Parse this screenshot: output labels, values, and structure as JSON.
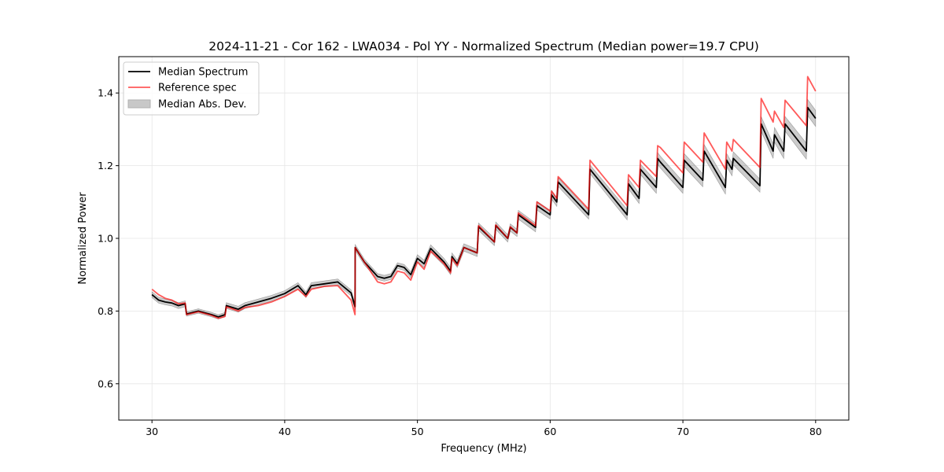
{
  "chart_data": {
    "type": "line",
    "title": "2024-11-21 - Cor 162 - LWA034 - Pol YY - Normalized Spectrum (Median power=19.7 CPU)",
    "xlabel": "Frequency (MHz)",
    "ylabel": "Normalized Power",
    "xlim": [
      27.5,
      82.5
    ],
    "ylim": [
      0.5,
      1.5
    ],
    "xticks": [
      30,
      40,
      50,
      60,
      70,
      80
    ],
    "xtick_labels": [
      "30",
      "40",
      "50",
      "60",
      "70",
      "80"
    ],
    "yticks": [
      0.6,
      0.8,
      1.0,
      1.2,
      1.4
    ],
    "ytick_labels": [
      "0.6",
      "0.8",
      "1.0",
      "1.2",
      "1.4"
    ],
    "grid": true,
    "legend_placement": "top-left",
    "legend": [
      "Median Spectrum",
      "Reference spec",
      "Median Abs. Dev."
    ],
    "colors": {
      "median": "#000000",
      "reference": "#ff5a5a",
      "mad": "#c8c8c8"
    },
    "columns": [
      "frequency_mhz",
      "median",
      "reference",
      "mad"
    ],
    "points": [
      [
        30.0,
        0.845,
        0.86,
        0.008
      ],
      [
        30.5,
        0.83,
        0.845,
        0.008
      ],
      [
        31.0,
        0.825,
        0.835,
        0.008
      ],
      [
        31.5,
        0.822,
        0.83,
        0.008
      ],
      [
        32.0,
        0.815,
        0.82,
        0.008
      ],
      [
        32.5,
        0.82,
        0.822,
        0.008
      ],
      [
        32.6,
        0.792,
        0.79,
        0.006
      ],
      [
        33.5,
        0.8,
        0.798,
        0.006
      ],
      [
        34.5,
        0.79,
        0.788,
        0.006
      ],
      [
        35.0,
        0.784,
        0.78,
        0.006
      ],
      [
        35.5,
        0.79,
        0.785,
        0.006
      ],
      [
        35.6,
        0.815,
        0.812,
        0.008
      ],
      [
        36.5,
        0.805,
        0.8,
        0.008
      ],
      [
        37.0,
        0.815,
        0.81,
        0.008
      ],
      [
        38.0,
        0.825,
        0.815,
        0.008
      ],
      [
        39.0,
        0.835,
        0.825,
        0.008
      ],
      [
        40.0,
        0.848,
        0.84,
        0.008
      ],
      [
        41.0,
        0.87,
        0.86,
        0.008
      ],
      [
        41.6,
        0.845,
        0.84,
        0.008
      ],
      [
        42.0,
        0.87,
        0.86,
        0.008
      ],
      [
        43.0,
        0.875,
        0.868,
        0.008
      ],
      [
        44.0,
        0.88,
        0.87,
        0.008
      ],
      [
        45.0,
        0.85,
        0.83,
        0.008
      ],
      [
        45.3,
        0.812,
        0.79,
        0.008
      ],
      [
        45.31,
        0.975,
        0.975,
        0.008
      ],
      [
        46.0,
        0.935,
        0.935,
        0.008
      ],
      [
        47.0,
        0.895,
        0.88,
        0.008
      ],
      [
        47.5,
        0.89,
        0.875,
        0.008
      ],
      [
        48.0,
        0.895,
        0.88,
        0.008
      ],
      [
        48.5,
        0.925,
        0.91,
        0.008
      ],
      [
        49.0,
        0.92,
        0.905,
        0.008
      ],
      [
        49.5,
        0.9,
        0.885,
        0.008
      ],
      [
        50.0,
        0.945,
        0.935,
        0.01
      ],
      [
        50.5,
        0.93,
        0.915,
        0.01
      ],
      [
        51.0,
        0.972,
        0.965,
        0.01
      ],
      [
        52.0,
        0.935,
        0.93,
        0.01
      ],
      [
        52.5,
        0.91,
        0.905,
        0.01
      ],
      [
        52.6,
        0.95,
        0.945,
        0.01
      ],
      [
        53.0,
        0.93,
        0.925,
        0.01
      ],
      [
        53.5,
        0.975,
        0.975,
        0.01
      ],
      [
        54.5,
        0.96,
        0.96,
        0.01
      ],
      [
        54.6,
        1.032,
        1.035,
        0.01
      ],
      [
        55.8,
        0.99,
        0.99,
        0.01
      ],
      [
        55.9,
        1.035,
        1.037,
        0.01
      ],
      [
        56.8,
        1.0,
        1.0,
        0.01
      ],
      [
        57.0,
        1.03,
        1.032,
        0.01
      ],
      [
        57.5,
        1.015,
        1.015,
        0.01
      ],
      [
        57.6,
        1.065,
        1.07,
        0.012
      ],
      [
        58.9,
        1.03,
        1.035,
        0.012
      ],
      [
        59.0,
        1.09,
        1.1,
        0.012
      ],
      [
        60.0,
        1.065,
        1.075,
        0.012
      ],
      [
        60.1,
        1.12,
        1.13,
        0.012
      ],
      [
        60.5,
        1.1,
        1.11,
        0.012
      ],
      [
        60.6,
        1.155,
        1.17,
        0.012
      ],
      [
        62.9,
        1.065,
        1.08,
        0.012
      ],
      [
        63.0,
        1.19,
        1.215,
        0.012
      ],
      [
        65.8,
        1.065,
        1.09,
        0.014
      ],
      [
        65.9,
        1.15,
        1.175,
        0.014
      ],
      [
        66.7,
        1.11,
        1.14,
        0.014
      ],
      [
        66.8,
        1.19,
        1.215,
        0.014
      ],
      [
        68.0,
        1.14,
        1.17,
        0.016
      ],
      [
        68.1,
        1.22,
        1.255,
        0.016
      ],
      [
        68.3,
        1.21,
        1.25,
        0.016
      ],
      [
        70.0,
        1.14,
        1.18,
        0.016
      ],
      [
        70.1,
        1.215,
        1.265,
        0.018
      ],
      [
        71.5,
        1.16,
        1.21,
        0.018
      ],
      [
        71.6,
        1.24,
        1.29,
        0.018
      ],
      [
        73.2,
        1.14,
        1.19,
        0.018
      ],
      [
        73.3,
        1.215,
        1.265,
        0.018
      ],
      [
        73.7,
        1.19,
        1.24,
        0.018
      ],
      [
        73.8,
        1.22,
        1.272,
        0.018
      ],
      [
        75.8,
        1.145,
        1.195,
        0.018
      ],
      [
        75.9,
        1.315,
        1.385,
        0.02
      ],
      [
        76.8,
        1.24,
        1.32,
        0.02
      ],
      [
        76.9,
        1.285,
        1.35,
        0.02
      ],
      [
        77.6,
        1.24,
        1.305,
        0.02
      ],
      [
        77.7,
        1.315,
        1.38,
        0.02
      ],
      [
        79.3,
        1.24,
        1.31,
        0.022
      ],
      [
        79.4,
        1.36,
        1.445,
        0.022
      ],
      [
        80.0,
        1.33,
        1.405,
        0.022
      ]
    ]
  }
}
